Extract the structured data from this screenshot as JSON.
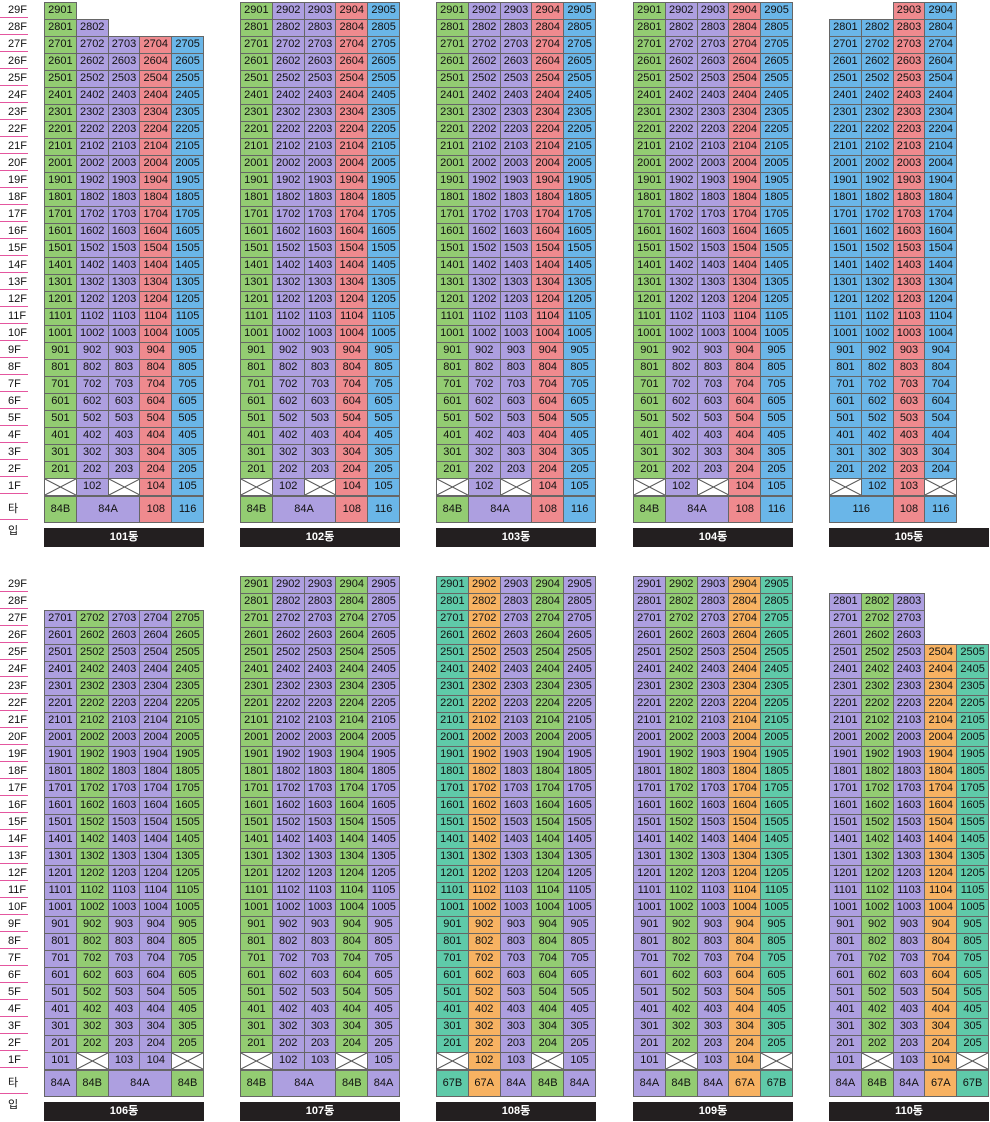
{
  "colors": {
    "84B": "#93cc72",
    "84A": "#ad9fe0",
    "108": "#ef8a8e",
    "116": "#6ab6e8",
    "67A": "#f7b262",
    "67B": "#5fcaa9",
    "empty_cell": "#ffffff"
  },
  "floor_labels_top_to_bottom": [
    "29F",
    "28F",
    "27F",
    "26F",
    "25F",
    "24F",
    "23F",
    "22F",
    "21F",
    "20F",
    "19F",
    "18F",
    "17F",
    "16F",
    "15F",
    "14F",
    "13F",
    "12F",
    "11F",
    "10F",
    "9F",
    "8F",
    "7F",
    "6F",
    "5F",
    "4F",
    "3F",
    "2F",
    "1F"
  ],
  "type_row_label": "타입",
  "empty_unit_icon": "cross-box-icon",
  "buildings": [
    {
      "name": "101동",
      "row": 0,
      "col": 0,
      "units": [
        1,
        2,
        3,
        4,
        5
      ],
      "types": [
        "84B",
        "84A",
        "84A",
        "108",
        "116"
      ],
      "type_labels": [
        "84B",
        "84A",
        "108",
        "116"
      ],
      "top_floor": [
        29,
        28,
        27,
        27,
        27
      ],
      "first_floor": [
        false,
        true,
        false,
        true,
        true
      ]
    },
    {
      "name": "102동",
      "row": 0,
      "col": 1,
      "units": [
        1,
        2,
        3,
        4,
        5
      ],
      "types": [
        "84B",
        "84A",
        "84A",
        "108",
        "116"
      ],
      "type_labels": [
        "84B",
        "84A",
        "108",
        "116"
      ],
      "top_floor": [
        29,
        29,
        29,
        29,
        29
      ],
      "first_floor": [
        false,
        true,
        false,
        true,
        true
      ]
    },
    {
      "name": "103동",
      "row": 0,
      "col": 2,
      "units": [
        1,
        2,
        3,
        4,
        5
      ],
      "types": [
        "84B",
        "84A",
        "84A",
        "108",
        "116"
      ],
      "type_labels": [
        "84B",
        "84A",
        "108",
        "116"
      ],
      "top_floor": [
        29,
        29,
        29,
        29,
        29
      ],
      "first_floor": [
        false,
        true,
        false,
        true,
        true
      ]
    },
    {
      "name": "104동",
      "row": 0,
      "col": 3,
      "units": [
        1,
        2,
        3,
        4,
        5
      ],
      "types": [
        "84B",
        "84A",
        "84A",
        "108",
        "116"
      ],
      "type_labels": [
        "84B",
        "84A",
        "108",
        "116"
      ],
      "top_floor": [
        29,
        29,
        29,
        29,
        29
      ],
      "first_floor": [
        false,
        true,
        false,
        true,
        true
      ]
    },
    {
      "name": "105동",
      "row": 0,
      "col": 4,
      "units": [
        1,
        2,
        3,
        4
      ],
      "types": [
        "116",
        "116",
        "108",
        "116"
      ],
      "type_labels": [
        "116",
        "108",
        "116"
      ],
      "top_floor": [
        28,
        28,
        29,
        29
      ],
      "first_floor": [
        false,
        true,
        true,
        false
      ]
    },
    {
      "name": "106동",
      "row": 1,
      "col": 0,
      "units": [
        1,
        2,
        3,
        4,
        5
      ],
      "types": [
        "84A",
        "84B",
        "84A",
        "84A",
        "84B"
      ],
      "type_labels": [
        "84A",
        "84B",
        "84A",
        "84B"
      ],
      "top_floor": [
        27,
        27,
        27,
        27,
        27
      ],
      "first_floor": [
        true,
        false,
        true,
        true,
        false
      ]
    },
    {
      "name": "107동",
      "row": 1,
      "col": 1,
      "units": [
        1,
        2,
        3,
        4,
        5
      ],
      "types": [
        "84B",
        "84A",
        "84A",
        "84B",
        "84A"
      ],
      "type_labels": [
        "84B",
        "84A",
        "84B",
        "84A"
      ],
      "top_floor": [
        29,
        29,
        29,
        29,
        29
      ],
      "first_floor": [
        false,
        true,
        true,
        false,
        true
      ]
    },
    {
      "name": "108동",
      "row": 1,
      "col": 2,
      "units": [
        1,
        2,
        3,
        4,
        5
      ],
      "types": [
        "67B",
        "67A",
        "84A",
        "84B",
        "84A"
      ],
      "type_labels": [
        "67B",
        "67A",
        "84A",
        "84B",
        "84A"
      ],
      "top_floor": [
        29,
        29,
        29,
        29,
        29
      ],
      "first_floor": [
        false,
        true,
        true,
        false,
        true
      ]
    },
    {
      "name": "109동",
      "row": 1,
      "col": 3,
      "units": [
        1,
        2,
        3,
        4,
        5
      ],
      "types": [
        "84A",
        "84B",
        "84A",
        "67A",
        "67B"
      ],
      "type_labels": [
        "84A",
        "84B",
        "84A",
        "67A",
        "67B"
      ],
      "top_floor": [
        29,
        29,
        29,
        29,
        29
      ],
      "first_floor": [
        true,
        false,
        true,
        true,
        false
      ]
    },
    {
      "name": "110동",
      "row": 1,
      "col": 4,
      "units": [
        1,
        2,
        3,
        4,
        5
      ],
      "types": [
        "84A",
        "84B",
        "84A",
        "67A",
        "67B"
      ],
      "type_labels": [
        "84A",
        "84B",
        "84A",
        "67A",
        "67B"
      ],
      "top_floor": [
        28,
        28,
        28,
        25,
        25
      ],
      "first_floor": [
        true,
        false,
        true,
        true,
        false
      ]
    }
  ]
}
